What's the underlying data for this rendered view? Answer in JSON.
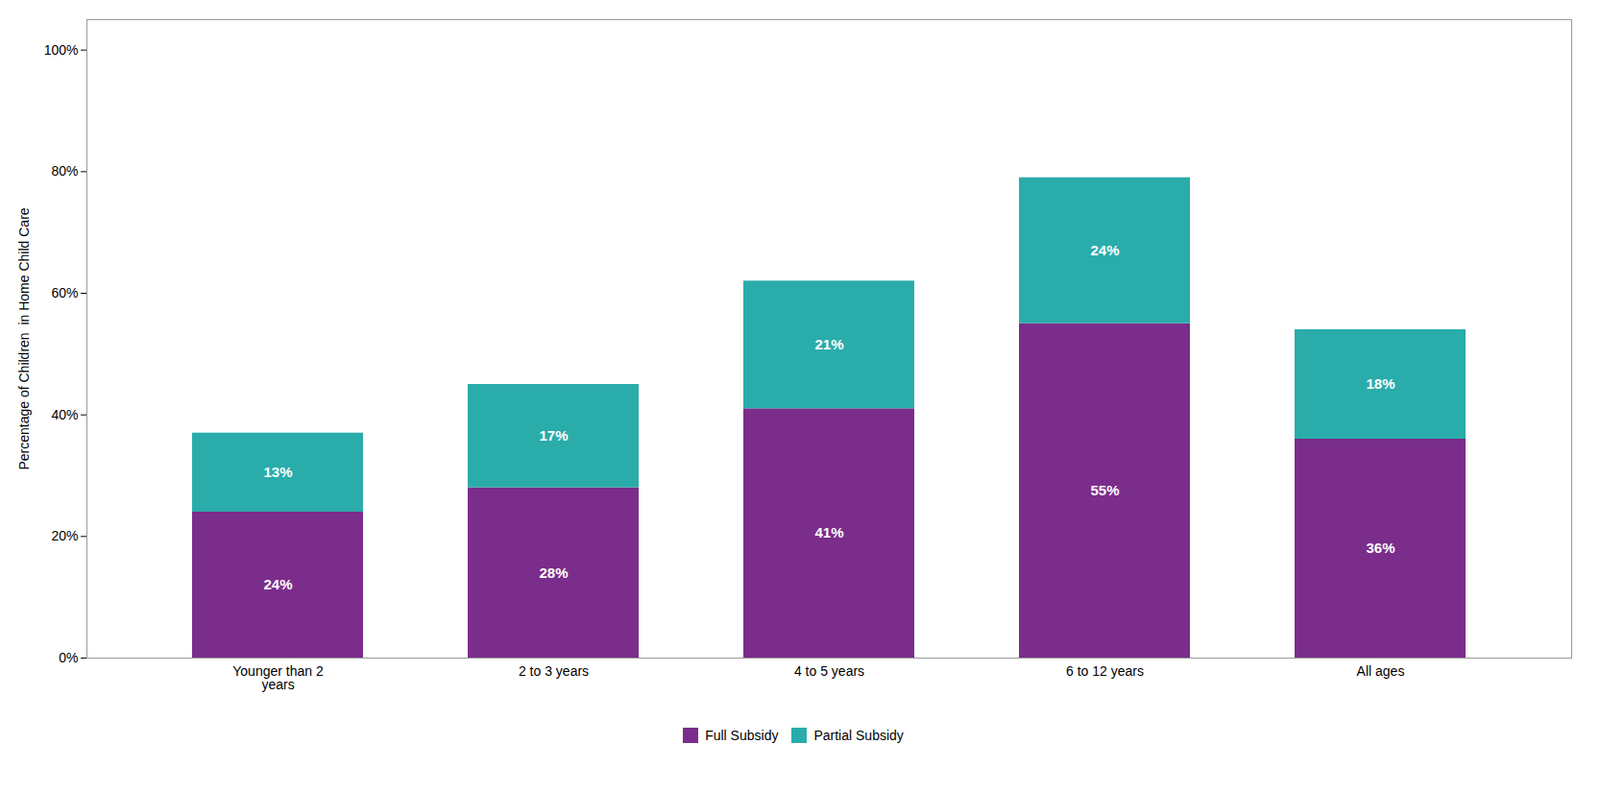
{
  "chart_data": {
    "type": "bar",
    "stacked": true,
    "categories": [
      "Younger than 2\nyears",
      "2 to 3 years",
      "4 to 5 years",
      "6 to 12 years",
      "All ages"
    ],
    "series": [
      {
        "name": "Full Subsidy",
        "color": "#7B2D8B",
        "values": [
          24,
          28,
          41,
          55,
          36
        ],
        "value_labels": [
          "24%",
          "28%",
          "41%",
          "55%",
          "36%"
        ]
      },
      {
        "name": "Partial Subsidy",
        "color": "#2AACAA",
        "values": [
          13,
          17,
          21,
          24,
          18
        ],
        "value_labels": [
          "13%",
          "17%",
          "21%",
          "24%",
          "18%"
        ]
      }
    ],
    "ylabel": "Percentage of Children  in Home Child Care",
    "ylim": [
      0,
      105
    ],
    "yticks": [
      {
        "value": 0,
        "label": "0%"
      },
      {
        "value": 20,
        "label": "20%"
      },
      {
        "value": 40,
        "label": "40%"
      },
      {
        "value": 60,
        "label": "60%"
      },
      {
        "value": 80,
        "label": "80%"
      },
      {
        "value": 100,
        "label": "100%"
      }
    ],
    "data_labels": true,
    "grid": false,
    "legend": "bottom"
  }
}
